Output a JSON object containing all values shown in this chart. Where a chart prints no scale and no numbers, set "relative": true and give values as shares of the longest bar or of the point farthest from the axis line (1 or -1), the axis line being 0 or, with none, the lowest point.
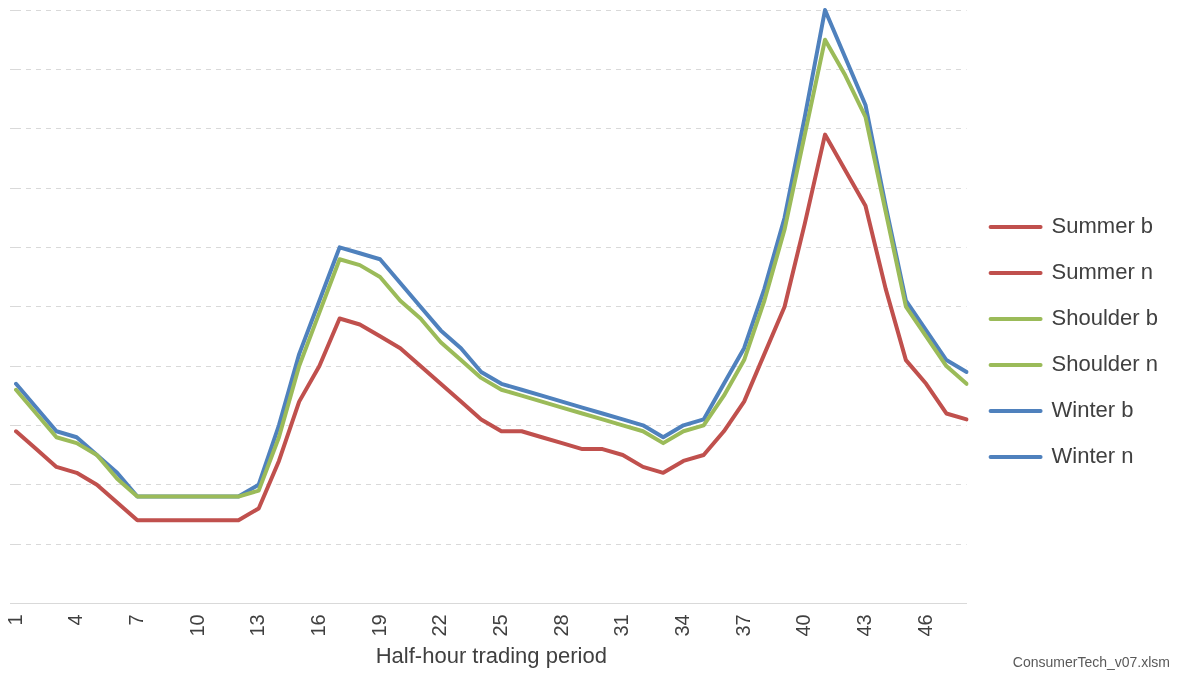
{
  "chart_data": {
    "type": "line",
    "relative": true,
    "xlabel": "Half-hour trading period",
    "categories": [
      "1",
      null,
      null,
      "4",
      null,
      null,
      "7",
      null,
      null,
      "10",
      null,
      null,
      "13",
      null,
      null,
      "16",
      null,
      null,
      "19",
      null,
      null,
      "22",
      null,
      null,
      "25",
      null,
      null,
      "28",
      null,
      null,
      "31",
      null,
      null,
      "34",
      null,
      null,
      "37",
      null,
      null,
      "40",
      null,
      null,
      "43",
      null,
      null,
      "46",
      null,
      null
    ],
    "series": [
      {
        "name": "Summer b",
        "color": "#c0504d",
        "line_style": "solid",
        "values": [
          0.29,
          0.26,
          0.23,
          0.22,
          0.2,
          0.17,
          0.14,
          0.14,
          0.14,
          0.14,
          0.14,
          0.14,
          0.16,
          0.24,
          0.34,
          0.4,
          0.48,
          0.47,
          0.45,
          0.43,
          0.4,
          0.37,
          0.34,
          0.31,
          0.29,
          0.29,
          0.28,
          0.27,
          0.26,
          0.26,
          0.25,
          0.23,
          0.22,
          0.24,
          0.25,
          0.29,
          0.34,
          0.42,
          0.5,
          0.64,
          0.79,
          0.73,
          0.67,
          0.53,
          0.41,
          0.37,
          0.32,
          0.31
        ]
      },
      {
        "name": "Summer n",
        "color": "#c0504d",
        "line_style": "dashed",
        "values": [
          null,
          null,
          null,
          null,
          null,
          null,
          null,
          null,
          null,
          null,
          null,
          null,
          null,
          null,
          null,
          null,
          null,
          null,
          null,
          null,
          null,
          null,
          null,
          null,
          null,
          null,
          null,
          null,
          null,
          null,
          null,
          null,
          null,
          null,
          null,
          null,
          null,
          null,
          null,
          null,
          null,
          null,
          null,
          null,
          null,
          null,
          null,
          null
        ]
      },
      {
        "name": "Shoulder b",
        "color": "#9bbb59",
        "line_style": "solid",
        "values": [
          0.36,
          0.32,
          0.28,
          0.27,
          0.25,
          0.21,
          0.18,
          0.18,
          0.18,
          0.18,
          0.18,
          0.18,
          0.19,
          0.28,
          0.4,
          0.49,
          0.58,
          0.57,
          0.55,
          0.51,
          0.48,
          0.44,
          0.41,
          0.38,
          0.36,
          0.35,
          0.34,
          0.33,
          0.32,
          0.31,
          0.3,
          0.29,
          0.27,
          0.29,
          0.3,
          0.35,
          0.41,
          0.51,
          0.63,
          0.79,
          0.95,
          0.89,
          0.82,
          0.66,
          0.5,
          0.45,
          0.4,
          0.37
        ]
      },
      {
        "name": "Shoulder n",
        "color": "#9bbb59",
        "line_style": "dashed",
        "values": [
          null,
          null,
          null,
          null,
          null,
          null,
          null,
          null,
          null,
          null,
          null,
          null,
          null,
          null,
          null,
          null,
          null,
          null,
          null,
          null,
          null,
          null,
          null,
          null,
          null,
          null,
          null,
          null,
          null,
          null,
          null,
          null,
          null,
          null,
          null,
          null,
          null,
          null,
          null,
          null,
          null,
          null,
          null,
          null,
          null,
          null,
          null,
          null
        ]
      },
      {
        "name": "Winter b",
        "color": "#4f81bd",
        "line_style": "solid",
        "values": [
          0.37,
          0.33,
          0.29,
          0.28,
          0.25,
          0.22,
          0.18,
          0.18,
          0.18,
          0.18,
          0.18,
          0.18,
          0.2,
          0.3,
          0.42,
          0.51,
          0.6,
          0.59,
          0.58,
          0.54,
          0.5,
          0.46,
          0.43,
          0.39,
          0.37,
          0.36,
          0.35,
          0.34,
          0.33,
          0.32,
          0.31,
          0.3,
          0.28,
          0.3,
          0.31,
          0.37,
          0.43,
          0.53,
          0.65,
          0.82,
          1,
          0.92,
          0.84,
          0.67,
          0.51,
          0.46,
          0.41,
          0.39
        ]
      },
      {
        "name": "Winter n",
        "color": "#4f81bd",
        "line_style": "dashed",
        "values": [
          null,
          null,
          null,
          null,
          null,
          null,
          null,
          null,
          null,
          null,
          null,
          null,
          null,
          null,
          null,
          null,
          null,
          null,
          null,
          null,
          null,
          null,
          null,
          null,
          null,
          null,
          null,
          null,
          null,
          null,
          null,
          null,
          null,
          null,
          null,
          null,
          null,
          null,
          null,
          null,
          null,
          null,
          null,
          null,
          null,
          null,
          null,
          null
        ]
      }
    ],
    "annotations": [
      "ConsumerTech_v07.xlsm"
    ],
    "grid": "y",
    "legend": "right",
    "marker": "none"
  }
}
